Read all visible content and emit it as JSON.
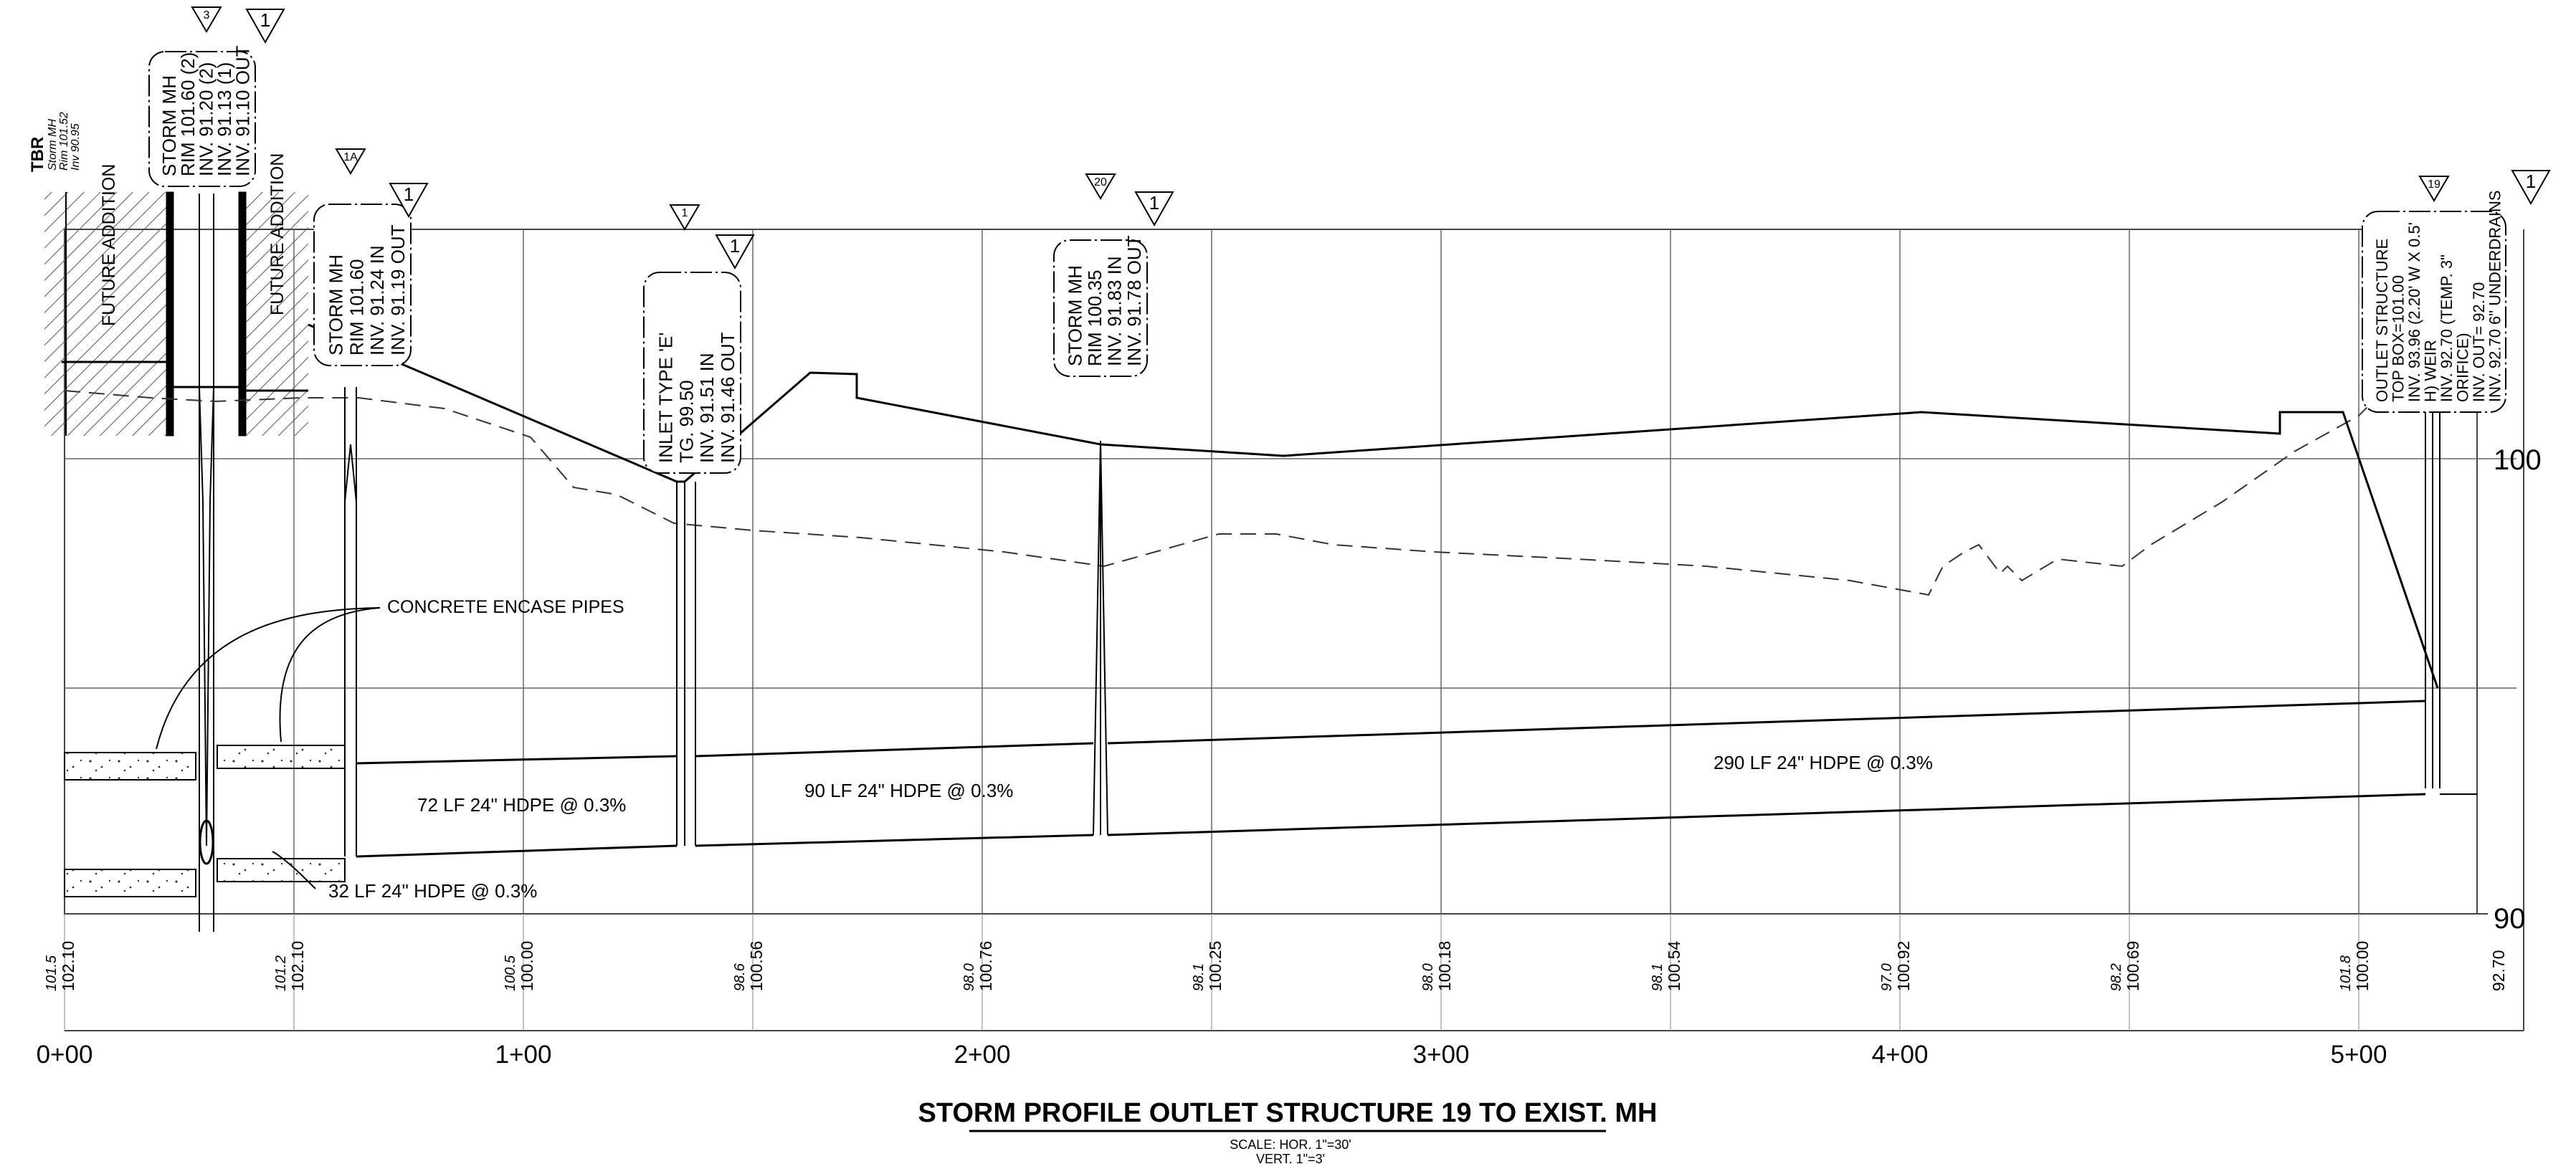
{
  "drawing": {
    "title": "STORM PROFILE OUTLET STRUCTURE 19 TO EXIST. MH",
    "scale_horizontal": "SCALE: HOR. 1\"=30'",
    "scale_vertical": "VERT. 1\"=3'"
  },
  "tbr": {
    "title": "TBR",
    "lines": [
      "Storm MH",
      "Rim 101.52",
      "Inv 90.95"
    ]
  },
  "future_addition": [
    "FUTURE ADDITION",
    "FUTURE ADDITION"
  ],
  "elevation_labels": [
    "100",
    "90"
  ],
  "stations": [
    "0+00",
    "1+00",
    "2+00",
    "3+00",
    "4+00",
    "5+00"
  ],
  "ground_elevations": [
    {
      "existing": "101.5",
      "proposed": "102.10"
    },
    {
      "existing": "101.2",
      "proposed": "102.10"
    },
    {
      "existing": "100.5",
      "proposed": "100.00"
    },
    {
      "existing": "98.6",
      "proposed": "100.56"
    },
    {
      "existing": "98.0",
      "proposed": "100.76"
    },
    {
      "existing": "98.1",
      "proposed": "100.25"
    },
    {
      "existing": "98.0",
      "proposed": "100.18"
    },
    {
      "existing": "98.1",
      "proposed": "100.54"
    },
    {
      "existing": "97.0",
      "proposed": "100.92"
    },
    {
      "existing": "98.2",
      "proposed": "100.69"
    },
    {
      "existing": "101.8",
      "proposed": "100.00"
    },
    {
      "existing": "",
      "proposed": "92.70"
    }
  ],
  "structures": [
    {
      "tag": "3",
      "rev": "1",
      "lines": [
        "STORM MH",
        "RIM 101.60 (2)",
        "INV. 91.20 (2)",
        "INV. 91.13 (1)",
        "INV. 91.10 OUT"
      ]
    },
    {
      "tag": "1A",
      "rev": "1",
      "lines": [
        "STORM MH",
        "RIM 101.60",
        "INV. 91.24 IN",
        "INV. 91.19 OUT"
      ]
    },
    {
      "tag": "1",
      "rev": "1",
      "lines": [
        "INLET TYPE 'E'",
        "TG. 99.50",
        "INV. 91.51 IN",
        "INV. 91.46 OUT"
      ]
    },
    {
      "tag": "20",
      "rev": "1",
      "lines": [
        "STORM MH",
        "RIM 100.35",
        "INV. 91.83 IN",
        "INV. 91.78 OUT"
      ]
    },
    {
      "tag": "19",
      "rev": "1",
      "lines": [
        "OUTLET STRUCTURE",
        "TOP BOX=101.00",
        "INV. 93.96 (2.20' W X 0.5'",
        "H) WEIR",
        "INV. 92.70 (TEMP. 3\"",
        "ORIFICE)",
        "INV. OUT= 92.70",
        "INV. 92.70 6\" UNDERDRAINS"
      ]
    }
  ],
  "pipes": [
    {
      "label": "32 LF 24\" HDPE @ 0.3%"
    },
    {
      "label": "72 LF 24\" HDPE @ 0.3%"
    },
    {
      "label": "90 LF 24\" HDPE @ 0.3%"
    },
    {
      "label": "290 LF 24\" HDPE @ 0.3%"
    }
  ],
  "callout": "CONCRETE ENCASE PIPES"
}
